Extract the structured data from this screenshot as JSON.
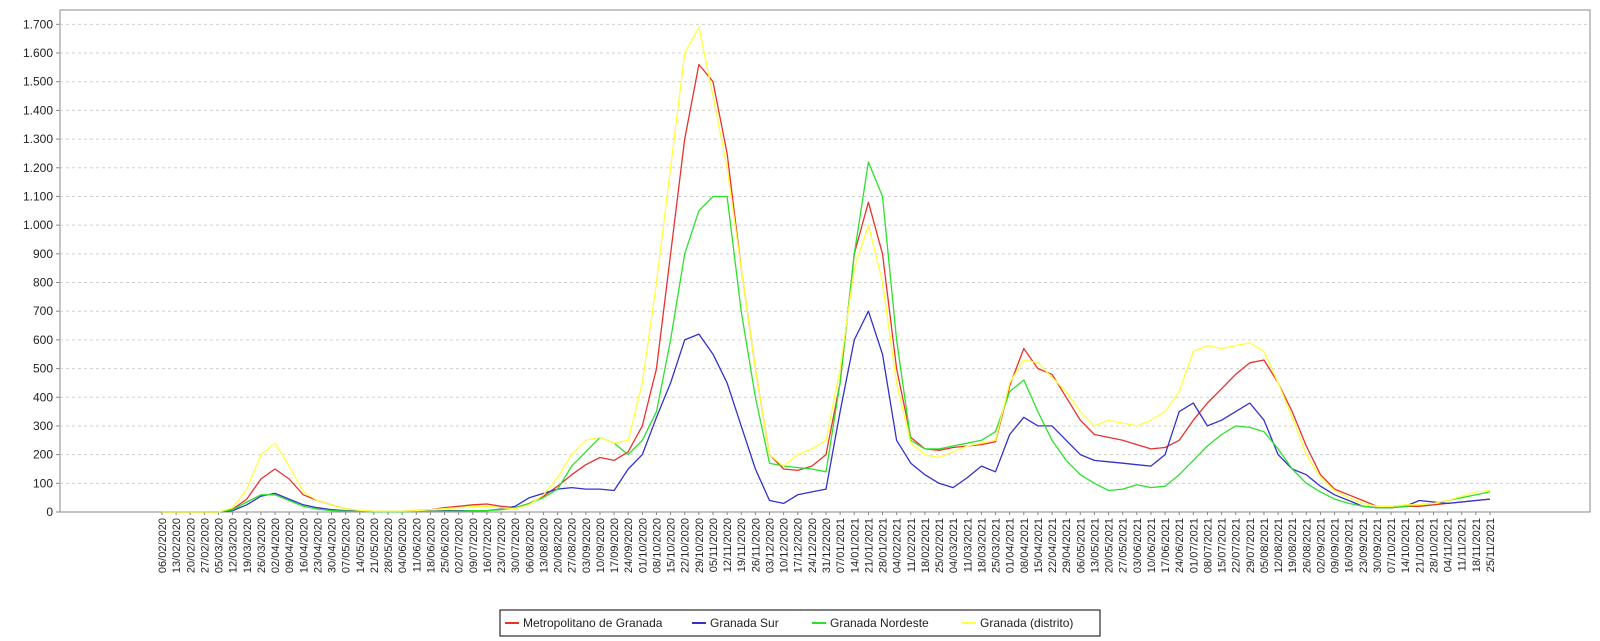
{
  "chart_data": {
    "type": "line",
    "title": "",
    "xlabel": "",
    "ylabel": "",
    "ylim": [
      0,
      1750
    ],
    "yticks": [
      0,
      100,
      200,
      300,
      400,
      500,
      600,
      700,
      800,
      900,
      1000,
      1100,
      1200,
      1300,
      1400,
      1500,
      1600,
      1700
    ],
    "ytick_labels": [
      "0",
      "100",
      "200",
      "300",
      "400",
      "500",
      "600",
      "700",
      "800",
      "900",
      "1.000",
      "1.100",
      "1.200",
      "1.300",
      "1.400",
      "1.500",
      "1.600",
      "1.700"
    ],
    "grid": "horizontal dashed",
    "legend_position": "bottom-center",
    "x": [
      "06/02/2020",
      "13/02/2020",
      "20/02/2020",
      "27/02/2020",
      "05/03/2020",
      "12/03/2020",
      "19/03/2020",
      "26/03/2020",
      "02/04/2020",
      "09/04/2020",
      "16/04/2020",
      "23/04/2020",
      "30/04/2020",
      "07/05/2020",
      "14/05/2020",
      "21/05/2020",
      "28/05/2020",
      "04/06/2020",
      "11/06/2020",
      "18/06/2020",
      "25/06/2020",
      "02/07/2020",
      "09/07/2020",
      "16/07/2020",
      "23/07/2020",
      "30/07/2020",
      "06/08/2020",
      "13/08/2020",
      "20/08/2020",
      "27/08/2020",
      "03/09/2020",
      "10/09/2020",
      "17/09/2020",
      "24/09/2020",
      "01/10/2020",
      "08/10/2020",
      "15/10/2020",
      "22/10/2020",
      "29/10/2020",
      "05/11/2020",
      "12/11/2020",
      "19/11/2020",
      "26/11/2020",
      "03/12/2020",
      "10/12/2020",
      "17/12/2020",
      "24/12/2020",
      "31/12/2020",
      "07/01/2021",
      "14/01/2021",
      "21/01/2021",
      "28/01/2021",
      "04/02/2021",
      "11/02/2021",
      "18/02/2021",
      "25/02/2021",
      "04/03/2021",
      "11/03/2021",
      "18/03/2021",
      "25/03/2021",
      "01/04/2021",
      "08/04/2021",
      "15/04/2021",
      "22/04/2021",
      "29/04/2021",
      "06/05/2021",
      "13/05/2021",
      "20/05/2021",
      "27/05/2021",
      "03/06/2021",
      "10/06/2021",
      "17/06/2021",
      "24/06/2021",
      "01/07/2021",
      "08/07/2021",
      "15/07/2021",
      "22/07/2021",
      "29/07/2021",
      "05/08/2021",
      "12/08/2021",
      "19/08/2021",
      "26/08/2021",
      "02/09/2021",
      "09/09/2021",
      "16/09/2021",
      "23/09/2021",
      "30/09/2021",
      "07/10/2021",
      "14/10/2021",
      "21/10/2021",
      "28/10/2021",
      "04/11/2021",
      "11/11/2021",
      "18/11/2021",
      "25/11/2021"
    ],
    "series": [
      {
        "name": "Metropolitano de Granada",
        "color": "#e8322e",
        "values": [
          0,
          0,
          0,
          0,
          0,
          10,
          45,
          115,
          150,
          115,
          60,
          40,
          25,
          12,
          5,
          3,
          3,
          3,
          5,
          8,
          15,
          20,
          25,
          28,
          20,
          15,
          30,
          55,
          90,
          130,
          165,
          190,
          180,
          210,
          300,
          500,
          900,
          1300,
          1560,
          1500,
          1250,
          850,
          500,
          200,
          150,
          145,
          160,
          200,
          450,
          900,
          1080,
          900,
          500,
          260,
          220,
          215,
          225,
          230,
          235,
          245,
          440,
          570,
          500,
          480,
          400,
          320,
          270,
          260,
          250,
          235,
          220,
          225,
          250,
          320,
          380,
          430,
          480,
          520,
          530,
          450,
          350,
          230,
          130,
          80,
          60,
          40,
          20,
          15,
          20,
          20,
          25,
          30,
          35,
          40,
          45
        ]
      },
      {
        "name": "Granada Sur",
        "color": "#3232c8",
        "values": [
          0,
          0,
          0,
          0,
          0,
          5,
          25,
          55,
          65,
          45,
          25,
          15,
          8,
          5,
          3,
          2,
          2,
          2,
          2,
          3,
          5,
          5,
          5,
          5,
          10,
          20,
          50,
          65,
          80,
          85,
          80,
          80,
          75,
          150,
          200,
          330,
          450,
          600,
          620,
          550,
          450,
          300,
          150,
          40,
          30,
          60,
          70,
          80,
          350,
          600,
          700,
          550,
          250,
          170,
          130,
          100,
          85,
          120,
          160,
          140,
          270,
          330,
          300,
          300,
          250,
          200,
          180,
          175,
          170,
          165,
          160,
          200,
          350,
          380,
          300,
          320,
          350,
          380,
          320,
          200,
          150,
          130,
          90,
          60,
          40,
          20,
          15,
          15,
          20,
          40,
          35,
          30,
          35,
          40,
          45
        ]
      },
      {
        "name": "Granada Nordeste",
        "color": "#2ee02e",
        "values": [
          0,
          0,
          0,
          0,
          0,
          8,
          35,
          60,
          60,
          40,
          20,
          10,
          5,
          3,
          2,
          1,
          1,
          1,
          2,
          2,
          3,
          3,
          5,
          5,
          8,
          15,
          30,
          50,
          80,
          160,
          210,
          260,
          240,
          200,
          250,
          350,
          600,
          900,
          1050,
          1100,
          1100,
          700,
          400,
          170,
          160,
          155,
          150,
          140,
          450,
          900,
          1220,
          1100,
          600,
          250,
          220,
          220,
          230,
          240,
          250,
          280,
          420,
          460,
          350,
          250,
          180,
          130,
          100,
          75,
          80,
          95,
          85,
          90,
          130,
          180,
          230,
          270,
          300,
          295,
          280,
          220,
          150,
          100,
          70,
          45,
          30,
          20,
          15,
          15,
          20,
          25,
          30,
          40,
          50,
          60,
          70
        ]
      },
      {
        "name": "Granada (distrito)",
        "color": "#ffff40",
        "values": [
          0,
          0,
          0,
          0,
          0,
          15,
          80,
          200,
          240,
          160,
          70,
          40,
          25,
          12,
          6,
          3,
          3,
          3,
          5,
          8,
          12,
          15,
          20,
          20,
          15,
          12,
          25,
          60,
          120,
          200,
          250,
          260,
          240,
          250,
          450,
          800,
          1200,
          1600,
          1690,
          1450,
          1200,
          850,
          500,
          200,
          160,
          200,
          220,
          250,
          500,
          850,
          1000,
          800,
          450,
          240,
          200,
          190,
          210,
          230,
          240,
          250,
          450,
          530,
          520,
          470,
          420,
          350,
          300,
          320,
          310,
          300,
          320,
          350,
          420,
          560,
          580,
          570,
          580,
          590,
          560,
          450,
          330,
          200,
          120,
          75,
          50,
          30,
          20,
          20,
          25,
          25,
          30,
          40,
          55,
          70,
          75
        ]
      }
    ]
  }
}
